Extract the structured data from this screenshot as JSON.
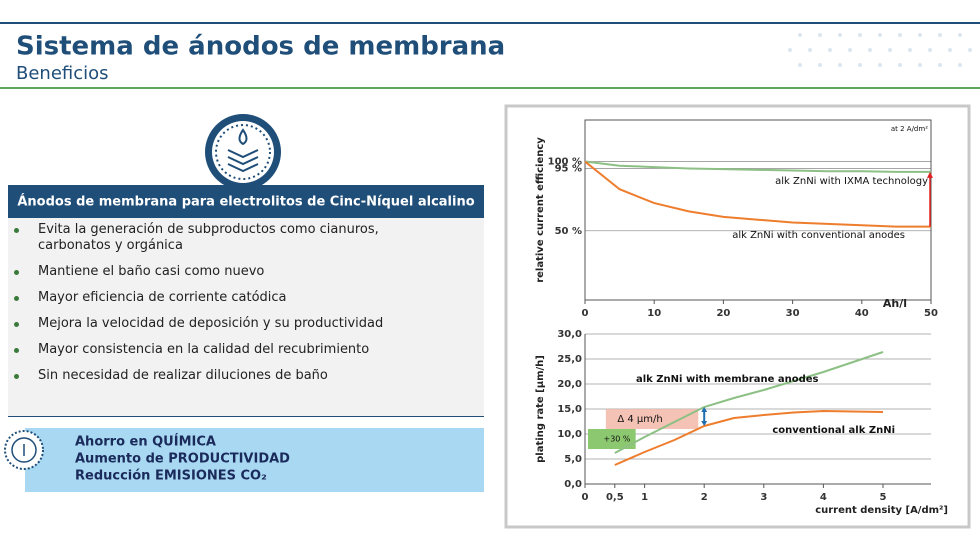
{
  "header": {
    "title": "Sistema de ánodos de membrana",
    "subtitle": "Beneficios"
  },
  "panel": {
    "heading": "Ánodos de membrana para electrolitos de Cinc-Níquel alcalino",
    "bullets": [
      "Evita la generación de subproductos como cianuros, carbonatos y orgánica",
      "Mantiene el baño casi como nuevo",
      "Mayor eficiencia de corriente catódica",
      "Mejora la velocidad de deposición y su productividad",
      "Mayor consistencia en la calidad del recubrimiento",
      "Sin necesidad de realizar diluciones de baño"
    ]
  },
  "callout": {
    "lines": [
      "Ahorro en QUÍMICA",
      "Aumento de PRODUCTIVIDAD",
      "Reducción EMISIONES CO₂"
    ]
  },
  "chart_data": [
    {
      "type": "line",
      "ylabel": "relative current efficiency",
      "xlabel": "Ah/l",
      "x": [
        0,
        5,
        10,
        15,
        20,
        25,
        30,
        35,
        40,
        45,
        50
      ],
      "xlim": [
        0,
        50
      ],
      "xticks": [
        0,
        10,
        20,
        30,
        40,
        50
      ],
      "ylim": [
        0,
        130
      ],
      "yticks": [
        {
          "value": 100,
          "label": "100 %"
        },
        {
          "value": 95,
          "label": "95 %"
        },
        {
          "value": 50,
          "label": "50 %"
        }
      ],
      "grid": true,
      "series": [
        {
          "name": "alk ZnNi with IXMA technology",
          "color": "#8cc084",
          "values": [
            100,
            97,
            96,
            95,
            94.5,
            94,
            93.5,
            93,
            93,
            92.5,
            92.5
          ]
        },
        {
          "name": "alk ZnNi with conventional anodes",
          "color": "#ee7d2e",
          "values": [
            100,
            80,
            70,
            64,
            60,
            58,
            56,
            55,
            54,
            53,
            53
          ]
        }
      ],
      "annotations": [
        "at 2 A/dm²"
      ]
    },
    {
      "type": "line",
      "ylabel": "plating rate [µm/h]",
      "xlabel": "current density [A/dm²]",
      "x": [
        0.5,
        1,
        1.5,
        2,
        2.5,
        3,
        3.5,
        4,
        4.5,
        5
      ],
      "xlim": [
        0,
        5
      ],
      "xticks": [
        0,
        {
          "value": 0.5,
          "label": "0,5"
        },
        1,
        2,
        3,
        4,
        5
      ],
      "ylim": [
        0,
        30
      ],
      "yticks": [
        {
          "value": 0,
          "label": "0,0"
        },
        {
          "value": 5,
          "label": "5,0"
        },
        {
          "value": 10,
          "label": "10,0"
        },
        {
          "value": 15,
          "label": "15,0"
        },
        {
          "value": 20,
          "label": "20,0"
        },
        {
          "value": 25,
          "label": "25,0"
        },
        {
          "value": 30,
          "label": "30,0"
        }
      ],
      "grid": true,
      "series": [
        {
          "name": "alk ZnNi with membrane anodes",
          "color": "#8cc084",
          "values": [
            6.2,
            9.4,
            12.4,
            15.4,
            17.2,
            18.8,
            20.6,
            22.4,
            24.4,
            26.4
          ]
        },
        {
          "name": "conventional alk ZnNi",
          "color": "#ee7d2e",
          "values": [
            3.8,
            6.4,
            8.8,
            11.6,
            13.2,
            13.8,
            14.3,
            14.6,
            14.5,
            14.4
          ]
        }
      ],
      "annotations": [
        "Δ 4 µm/h",
        "+30 %"
      ]
    }
  ]
}
